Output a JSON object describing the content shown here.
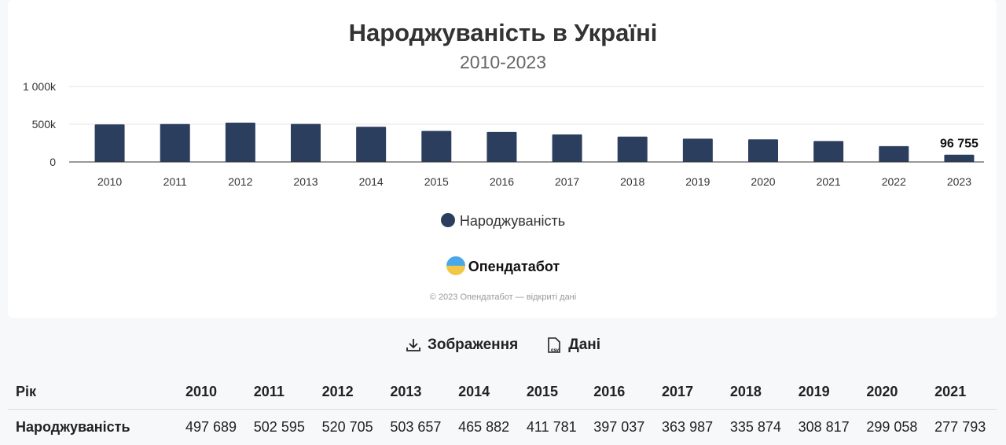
{
  "chart_data": {
    "type": "bar",
    "title": "Народжуваність в Україні",
    "subtitle": "2010-2023",
    "categories": [
      "2010",
      "2011",
      "2012",
      "2013",
      "2014",
      "2015",
      "2016",
      "2017",
      "2018",
      "2019",
      "2020",
      "2021",
      "2022",
      "2023"
    ],
    "series": [
      {
        "name": "Народжуваність",
        "values": [
          497689,
          502595,
          520705,
          503657,
          465882,
          411781,
          397037,
          363987,
          335874,
          308817,
          299058,
          277793,
          209620,
          96755
        ]
      }
    ],
    "ylim": [
      0,
      1000000
    ],
    "yticks": [
      {
        "v": 0,
        "label": "0"
      },
      {
        "v": 500000,
        "label": "500k"
      },
      {
        "v": 1000000,
        "label": "1 000k"
      }
    ],
    "annotations": [
      {
        "category": "2023",
        "label": "96 755"
      }
    ],
    "bar_color": "#2c3e5e",
    "grid": true,
    "legend": "bottom-center"
  },
  "branding": {
    "logo": "Опендатабот",
    "copyright": "© 2023 Опендатабот — відкриті дані"
  },
  "actions": {
    "image": "Зображення",
    "data": "Дані",
    "csv_badge": "csv"
  },
  "table": {
    "headers": [
      "Рік",
      "2010",
      "2011",
      "2012",
      "2013",
      "2014",
      "2015",
      "2016",
      "2017",
      "2018",
      "2019",
      "2020",
      "2021"
    ],
    "rows": [
      [
        "Народжуваність",
        "497 689",
        "502 595",
        "520 705",
        "503 657",
        "465 882",
        "411 781",
        "397 037",
        "363 987",
        "335 874",
        "308 817",
        "299 058",
        "277 793"
      ]
    ]
  }
}
